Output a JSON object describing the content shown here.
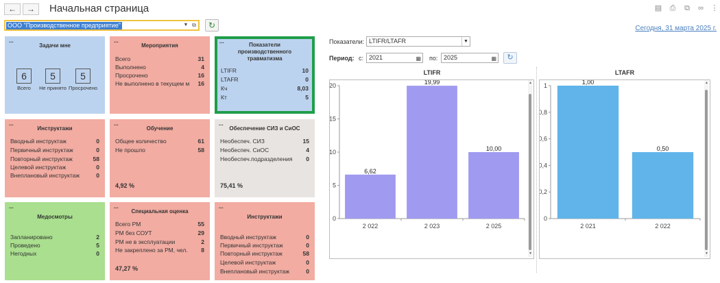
{
  "header": {
    "title": "Начальная страница",
    "back_icon": "←",
    "forward_icon": "→"
  },
  "toolbar_icons": [
    "save-icon",
    "print-icon",
    "preview-icon",
    "link-icon",
    "more-icon"
  ],
  "org": {
    "value": "ООО \"Производственное предприятие\""
  },
  "today_link": "Сегодня, 31 марта 2025 г.",
  "tiles": {
    "tasks": {
      "dots": "...",
      "title": "Задачи мне",
      "boxes": [
        {
          "value": "6",
          "label": "Всего"
        },
        {
          "value": "5",
          "label": "Не принято"
        },
        {
          "value": "5",
          "label": "Просрочено"
        }
      ]
    },
    "events": {
      "dots": "...",
      "title": "Мероприятия",
      "rows": [
        {
          "label": "Всего",
          "value": "31"
        },
        {
          "label": "Выполнено",
          "value": "4"
        },
        {
          "label": "Просрочено",
          "value": "16"
        },
        {
          "label": "Не выполнено в текущем ме",
          "value": "16"
        }
      ]
    },
    "injury": {
      "dots": "...",
      "title": "Показатели производственного травматизма",
      "rows": [
        {
          "label": "LTIFR",
          "value": "10"
        },
        {
          "label": "LTAFR",
          "value": "0"
        },
        {
          "label": "Кч",
          "value": "8,03"
        },
        {
          "label": "Кт",
          "value": "5"
        }
      ]
    },
    "briefings1": {
      "dots": "...",
      "title": "Инструктажи",
      "rows": [
        {
          "label": "Вводный инструктаж",
          "value": "0"
        },
        {
          "label": "Первичный инструктаж",
          "value": "0"
        },
        {
          "label": "Повторный инструктаж",
          "value": "58"
        },
        {
          "label": "Целевой инструктаж",
          "value": "0"
        },
        {
          "label": "Внеплановый инструктаж",
          "value": "0"
        }
      ]
    },
    "training": {
      "dots": "...",
      "title": "Обучение",
      "rows": [
        {
          "label": "Общее количество",
          "value": "61"
        },
        {
          "label": "Не прошло",
          "value": "58"
        }
      ],
      "percent": "4,92 %"
    },
    "ppe": {
      "dots": "...",
      "title": "Обеспечение СИЗ и СиОС",
      "rows": [
        {
          "label": "Необеспеч. СИЗ",
          "value": "15"
        },
        {
          "label": "Необеспеч. СиОС",
          "value": "4"
        },
        {
          "label": "Необеспеч.подразделения",
          "value": "0"
        }
      ],
      "percent": "75,41 %"
    },
    "medical": {
      "dots": "...",
      "title": "Медосмотры",
      "rows": [
        {
          "label": "Запланировано",
          "value": "2"
        },
        {
          "label": "Проведено",
          "value": "5"
        },
        {
          "label": "Негодных",
          "value": "0"
        }
      ]
    },
    "assessment": {
      "dots": "...",
      "title": "Специальная оценка",
      "rows": [
        {
          "label": "Всего РМ",
          "value": "55"
        },
        {
          "label": "РМ без СОУТ",
          "value": "29"
        },
        {
          "label": "РМ не в эксплуатации",
          "value": "2"
        },
        {
          "label": "Не закреплено за РМ, чел.",
          "value": "8"
        }
      ],
      "percent": "47,27 %"
    },
    "briefings2": {
      "dots": "...",
      "title": "Инструктажи",
      "rows": [
        {
          "label": "Вводный инструктаж",
          "value": "0"
        },
        {
          "label": "Первичный инструктаж",
          "value": "0"
        },
        {
          "label": "Повторный инструктаж",
          "value": "58"
        },
        {
          "label": "Целевой инструктаж",
          "value": "0"
        },
        {
          "label": "Внеплановый инструктаж",
          "value": "0"
        }
      ]
    }
  },
  "controls": {
    "indicator_label": "Показатели:",
    "indicator_value": "LTIFR/LTAFR",
    "period_label": "Период:",
    "from_label": "с:",
    "from_value": "2021",
    "to_label": "по:",
    "to_value": "2025"
  },
  "chart_data": [
    {
      "type": "bar",
      "title": "LTIFR",
      "categories": [
        "2 022",
        "2 023",
        "2 025"
      ],
      "values": [
        6.62,
        19.99,
        10.0
      ],
      "value_labels": [
        "6,62",
        "19,99",
        "10,00"
      ],
      "ylim": [
        0,
        20
      ],
      "yticks": [
        "0",
        "5",
        "10",
        "15",
        "20"
      ],
      "color": "#a09af0",
      "grid": false
    },
    {
      "type": "bar",
      "title": "LTAFR",
      "categories": [
        "2 021",
        "2 022"
      ],
      "values": [
        1.0,
        0.5
      ],
      "value_labels": [
        "1,00",
        "0,50"
      ],
      "ylim": [
        0,
        1
      ],
      "yticks": [
        "0",
        "0,2",
        "0,4",
        "0,6",
        "0,8",
        "1"
      ],
      "color": "#60b4ea",
      "grid": false
    }
  ]
}
